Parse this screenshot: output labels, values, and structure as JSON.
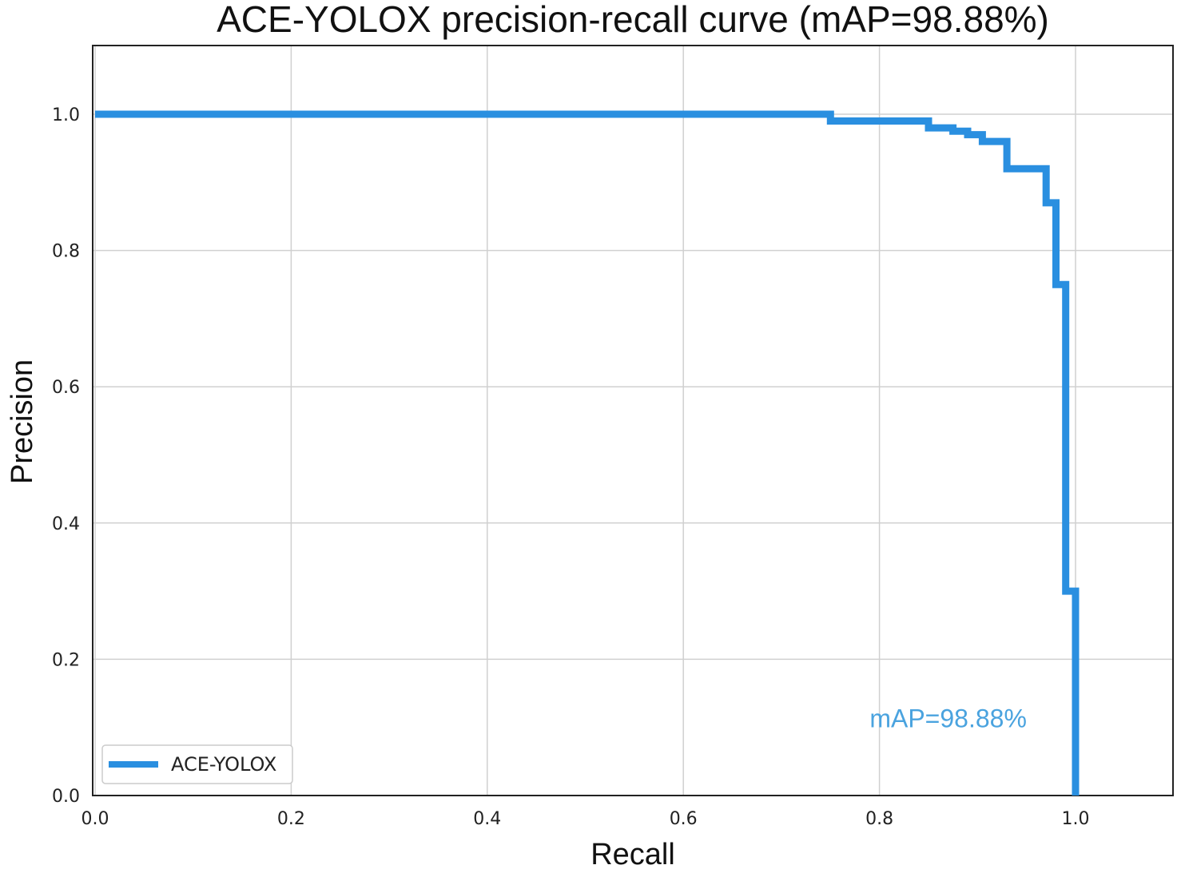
{
  "chart_data": {
    "type": "line",
    "title": "ACE-YOLOX precision-recall curve (mAP=98.88%)",
    "xlabel": "Recall",
    "ylabel": "Precision",
    "xlim": [
      0.0,
      1.1
    ],
    "ylim": [
      0.0,
      1.1
    ],
    "xticks": [
      "0.0",
      "0.2",
      "0.4",
      "0.6",
      "0.8",
      "1.0"
    ],
    "yticks": [
      "0.0",
      "0.2",
      "0.4",
      "0.6",
      "0.8",
      "1.0"
    ],
    "xtick_values": [
      0.0,
      0.2,
      0.4,
      0.6,
      0.8,
      1.0
    ],
    "ytick_values": [
      0.0,
      0.2,
      0.4,
      0.6,
      0.8,
      1.0
    ],
    "grid": true,
    "legend_position": "lower-left",
    "annotation": {
      "text": "mAP=98.88%",
      "color": "#4aa3df",
      "x": 0.79,
      "y": 0.1
    },
    "series": [
      {
        "name": "ACE-YOLOX",
        "color": "#2a8fe0",
        "x": [
          0.0,
          0.75,
          0.75,
          0.85,
          0.85,
          0.875,
          0.875,
          0.89,
          0.89,
          0.905,
          0.905,
          0.93,
          0.93,
          0.97,
          0.97,
          0.975,
          0.975,
          0.98,
          0.98,
          0.99,
          0.99,
          1.0,
          1.0
        ],
        "y": [
          1.0,
          1.0,
          0.99,
          0.99,
          0.98,
          0.98,
          0.975,
          0.975,
          0.97,
          0.97,
          0.96,
          0.96,
          0.92,
          0.92,
          0.87,
          0.87,
          0.87,
          0.87,
          0.75,
          0.75,
          0.3,
          0.3,
          0.0
        ]
      }
    ]
  },
  "legend": {
    "label": "ACE-YOLOX"
  }
}
